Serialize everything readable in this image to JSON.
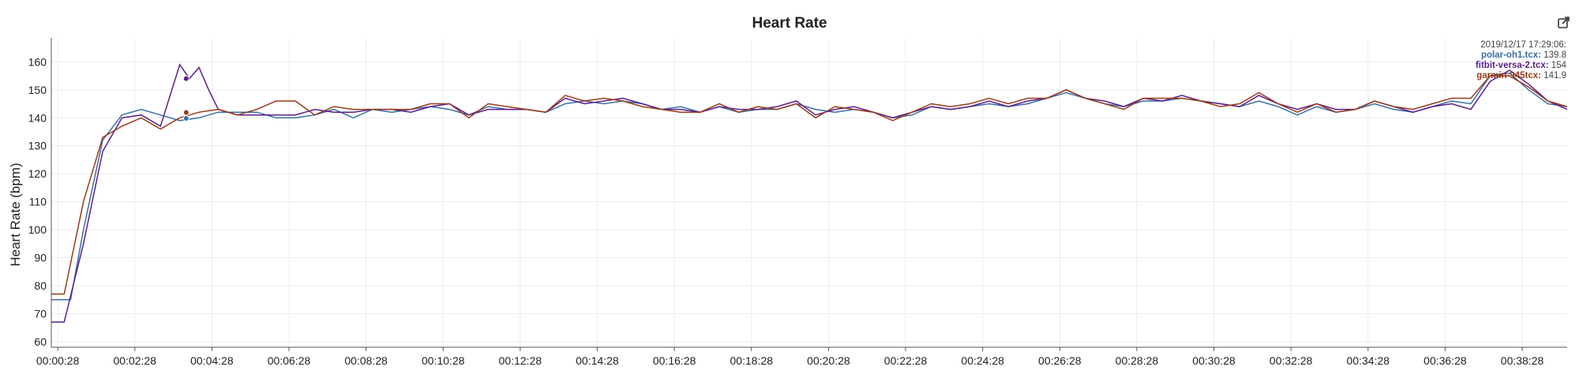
{
  "chart_data": {
    "type": "line",
    "title": "Heart Rate",
    "ylabel": "Heart Rate (bpm)",
    "xlabel": "",
    "ylim": [
      58,
      168
    ],
    "xlim": [
      "00:00:18",
      "00:39:38"
    ],
    "yticks": [
      60,
      70,
      80,
      90,
      100,
      110,
      120,
      130,
      140,
      150,
      160
    ],
    "xticks": [
      "00:00:28",
      "00:02:28",
      "00:04:28",
      "00:06:28",
      "00:08:28",
      "00:10:28",
      "00:12:28",
      "00:14:28",
      "00:16:28",
      "00:18:28",
      "00:20:28",
      "00:22:28",
      "00:24:28",
      "00:26:28",
      "00:28:28",
      "00:30:28",
      "00:32:28",
      "00:34:28",
      "00:36:28",
      "00:38:28"
    ],
    "grid": true,
    "legend_position": "top-right",
    "tooltip": {
      "timestamp": "2019/12/17 17:29:06:",
      "time": "00:03:48",
      "entries": [
        {
          "name": "polar-oh1.tcx:",
          "value": "139.8",
          "color": "#3b6fa6"
        },
        {
          "name": "fitbit-versa-2.tcx:",
          "value": "154",
          "color": "#5b1e8c"
        },
        {
          "name": "garmin-945tcx:",
          "value": "141.9",
          "color": "#9a3b1a"
        }
      ]
    },
    "series": [
      {
        "name": "polar-oh1.tcx",
        "color": "#3b6fa6",
        "points": [
          [
            "00:00:18",
            75
          ],
          [
            "00:00:48",
            75
          ],
          [
            "00:01:08",
            100
          ],
          [
            "00:01:38",
            132
          ],
          [
            "00:02:08",
            141
          ],
          [
            "00:02:38",
            143
          ],
          [
            "00:03:08",
            141
          ],
          [
            "00:03:38",
            139
          ],
          [
            "00:04:08",
            140
          ],
          [
            "00:04:38",
            142
          ],
          [
            "00:05:08",
            142
          ],
          [
            "00:05:38",
            142
          ],
          [
            "00:06:08",
            140
          ],
          [
            "00:06:38",
            140
          ],
          [
            "00:07:08",
            141
          ],
          [
            "00:07:38",
            143
          ],
          [
            "00:08:08",
            140
          ],
          [
            "00:08:38",
            143
          ],
          [
            "00:09:08",
            142
          ],
          [
            "00:09:38",
            143
          ],
          [
            "00:10:08",
            144
          ],
          [
            "00:10:38",
            143
          ],
          [
            "00:11:08",
            141
          ],
          [
            "00:11:38",
            144
          ],
          [
            "00:12:08",
            143
          ],
          [
            "00:12:38",
            143
          ],
          [
            "00:13:08",
            142
          ],
          [
            "00:13:38",
            145
          ],
          [
            "00:14:08",
            146
          ],
          [
            "00:14:38",
            145
          ],
          [
            "00:15:08",
            146
          ],
          [
            "00:15:38",
            145
          ],
          [
            "00:16:08",
            143
          ],
          [
            "00:16:38",
            144
          ],
          [
            "00:17:08",
            142
          ],
          [
            "00:17:38",
            144
          ],
          [
            "00:18:08",
            142
          ],
          [
            "00:18:38",
            143
          ],
          [
            "00:19:08",
            143
          ],
          [
            "00:19:38",
            145
          ],
          [
            "00:20:08",
            143
          ],
          [
            "00:20:38",
            142
          ],
          [
            "00:21:08",
            143
          ],
          [
            "00:21:38",
            142
          ],
          [
            "00:22:08",
            140
          ],
          [
            "00:22:38",
            141
          ],
          [
            "00:23:08",
            144
          ],
          [
            "00:23:38",
            143
          ],
          [
            "00:24:08",
            144
          ],
          [
            "00:24:38",
            145
          ],
          [
            "00:25:08",
            144
          ],
          [
            "00:25:38",
            145
          ],
          [
            "00:26:08",
            147
          ],
          [
            "00:26:38",
            149
          ],
          [
            "00:27:08",
            147
          ],
          [
            "00:27:38",
            145
          ],
          [
            "00:28:08",
            144
          ],
          [
            "00:28:38",
            146
          ],
          [
            "00:29:08",
            146
          ],
          [
            "00:29:38",
            147
          ],
          [
            "00:30:08",
            146
          ],
          [
            "00:30:38",
            145
          ],
          [
            "00:31:08",
            144
          ],
          [
            "00:31:38",
            146
          ],
          [
            "00:32:08",
            144
          ],
          [
            "00:32:38",
            141
          ],
          [
            "00:33:08",
            144
          ],
          [
            "00:33:38",
            142
          ],
          [
            "00:34:08",
            143
          ],
          [
            "00:34:38",
            145
          ],
          [
            "00:35:08",
            143
          ],
          [
            "00:35:38",
            142
          ],
          [
            "00:36:08",
            144
          ],
          [
            "00:36:38",
            146
          ],
          [
            "00:37:08",
            145
          ],
          [
            "00:37:38",
            155
          ],
          [
            "00:38:08",
            156
          ],
          [
            "00:38:38",
            150
          ],
          [
            "00:39:08",
            145
          ],
          [
            "00:39:38",
            144
          ]
        ]
      },
      {
        "name": "fitbit-versa-2.tcx",
        "color": "#5b1e8c",
        "points": [
          [
            "00:00:18",
            67
          ],
          [
            "00:00:38",
            67
          ],
          [
            "00:01:08",
            95
          ],
          [
            "00:01:38",
            128
          ],
          [
            "00:02:08",
            140
          ],
          [
            "00:02:38",
            141
          ],
          [
            "00:03:08",
            137
          ],
          [
            "00:03:23",
            148
          ],
          [
            "00:03:38",
            159
          ],
          [
            "00:03:53",
            154
          ],
          [
            "00:04:08",
            158
          ],
          [
            "00:04:23",
            150
          ],
          [
            "00:04:38",
            143
          ],
          [
            "00:05:08",
            141
          ],
          [
            "00:05:38",
            141
          ],
          [
            "00:06:08",
            141
          ],
          [
            "00:06:38",
            141
          ],
          [
            "00:07:08",
            143
          ],
          [
            "00:07:38",
            142
          ],
          [
            "00:08:08",
            142
          ],
          [
            "00:08:38",
            143
          ],
          [
            "00:09:08",
            143
          ],
          [
            "00:09:38",
            142
          ],
          [
            "00:10:08",
            144
          ],
          [
            "00:10:38",
            145
          ],
          [
            "00:11:08",
            141
          ],
          [
            "00:11:38",
            143
          ],
          [
            "00:12:08",
            143
          ],
          [
            "00:12:38",
            143
          ],
          [
            "00:13:08",
            142
          ],
          [
            "00:13:38",
            147
          ],
          [
            "00:14:08",
            145
          ],
          [
            "00:14:38",
            146
          ],
          [
            "00:15:08",
            147
          ],
          [
            "00:15:38",
            145
          ],
          [
            "00:16:08",
            143
          ],
          [
            "00:16:38",
            143
          ],
          [
            "00:17:08",
            142
          ],
          [
            "00:17:38",
            144
          ],
          [
            "00:18:08",
            143
          ],
          [
            "00:18:38",
            143
          ],
          [
            "00:19:08",
            144
          ],
          [
            "00:19:38",
            146
          ],
          [
            "00:20:08",
            141
          ],
          [
            "00:20:38",
            143
          ],
          [
            "00:21:08",
            144
          ],
          [
            "00:21:38",
            142
          ],
          [
            "00:22:08",
            140
          ],
          [
            "00:22:38",
            142
          ],
          [
            "00:23:08",
            144
          ],
          [
            "00:23:38",
            143
          ],
          [
            "00:24:08",
            144
          ],
          [
            "00:24:38",
            146
          ],
          [
            "00:25:08",
            144
          ],
          [
            "00:25:38",
            146
          ],
          [
            "00:26:08",
            147
          ],
          [
            "00:26:38",
            150
          ],
          [
            "00:27:08",
            147
          ],
          [
            "00:27:38",
            146
          ],
          [
            "00:28:08",
            144
          ],
          [
            "00:28:38",
            147
          ],
          [
            "00:29:08",
            146
          ],
          [
            "00:29:38",
            148
          ],
          [
            "00:30:08",
            146
          ],
          [
            "00:30:38",
            145
          ],
          [
            "00:31:08",
            144
          ],
          [
            "00:31:38",
            148
          ],
          [
            "00:32:08",
            145
          ],
          [
            "00:32:38",
            143
          ],
          [
            "00:33:08",
            145
          ],
          [
            "00:33:38",
            143
          ],
          [
            "00:34:08",
            143
          ],
          [
            "00:34:38",
            146
          ],
          [
            "00:35:08",
            144
          ],
          [
            "00:35:38",
            142
          ],
          [
            "00:36:08",
            144
          ],
          [
            "00:36:38",
            145
          ],
          [
            "00:37:08",
            143
          ],
          [
            "00:37:38",
            153
          ],
          [
            "00:38:08",
            157
          ],
          [
            "00:38:38",
            152
          ],
          [
            "00:39:08",
            146
          ],
          [
            "00:39:38",
            143
          ]
        ]
      },
      {
        "name": "garmin-945tcx",
        "color": "#9a3b1a",
        "points": [
          [
            "00:00:18",
            77
          ],
          [
            "00:00:38",
            77
          ],
          [
            "00:01:08",
            110
          ],
          [
            "00:01:38",
            133
          ],
          [
            "00:02:08",
            137
          ],
          [
            "00:02:38",
            140
          ],
          [
            "00:03:08",
            136
          ],
          [
            "00:03:38",
            140
          ],
          [
            "00:04:08",
            142
          ],
          [
            "00:04:38",
            143
          ],
          [
            "00:05:08",
            141
          ],
          [
            "00:05:38",
            143
          ],
          [
            "00:06:08",
            146
          ],
          [
            "00:06:38",
            146
          ],
          [
            "00:07:08",
            141
          ],
          [
            "00:07:38",
            144
          ],
          [
            "00:08:08",
            143
          ],
          [
            "00:08:38",
            143
          ],
          [
            "00:09:08",
            143
          ],
          [
            "00:09:38",
            143
          ],
          [
            "00:10:08",
            145
          ],
          [
            "00:10:38",
            145
          ],
          [
            "00:11:08",
            140
          ],
          [
            "00:11:38",
            145
          ],
          [
            "00:12:08",
            144
          ],
          [
            "00:12:38",
            143
          ],
          [
            "00:13:08",
            142
          ],
          [
            "00:13:38",
            148
          ],
          [
            "00:14:08",
            146
          ],
          [
            "00:14:38",
            147
          ],
          [
            "00:15:08",
            146
          ],
          [
            "00:15:38",
            144
          ],
          [
            "00:16:08",
            143
          ],
          [
            "00:16:38",
            142
          ],
          [
            "00:17:08",
            142
          ],
          [
            "00:17:38",
            145
          ],
          [
            "00:18:08",
            142
          ],
          [
            "00:18:38",
            144
          ],
          [
            "00:19:08",
            143
          ],
          [
            "00:19:38",
            145
          ],
          [
            "00:20:08",
            140
          ],
          [
            "00:20:38",
            144
          ],
          [
            "00:21:08",
            143
          ],
          [
            "00:21:38",
            142
          ],
          [
            "00:22:08",
            139
          ],
          [
            "00:22:38",
            142
          ],
          [
            "00:23:08",
            145
          ],
          [
            "00:23:38",
            144
          ],
          [
            "00:24:08",
            145
          ],
          [
            "00:24:38",
            147
          ],
          [
            "00:25:08",
            145
          ],
          [
            "00:25:38",
            147
          ],
          [
            "00:26:08",
            147
          ],
          [
            "00:26:38",
            150
          ],
          [
            "00:27:08",
            147
          ],
          [
            "00:27:38",
            145
          ],
          [
            "00:28:08",
            143
          ],
          [
            "00:28:38",
            147
          ],
          [
            "00:29:08",
            147
          ],
          [
            "00:29:38",
            147
          ],
          [
            "00:30:08",
            146
          ],
          [
            "00:30:38",
            144
          ],
          [
            "00:31:08",
            145
          ],
          [
            "00:31:38",
            149
          ],
          [
            "00:32:08",
            145
          ],
          [
            "00:32:38",
            142
          ],
          [
            "00:33:08",
            145
          ],
          [
            "00:33:38",
            142
          ],
          [
            "00:34:08",
            143
          ],
          [
            "00:34:38",
            146
          ],
          [
            "00:35:08",
            144
          ],
          [
            "00:35:38",
            143
          ],
          [
            "00:36:08",
            145
          ],
          [
            "00:36:38",
            147
          ],
          [
            "00:37:08",
            147
          ],
          [
            "00:37:38",
            155
          ],
          [
            "00:38:08",
            155
          ],
          [
            "00:38:38",
            151
          ],
          [
            "00:39:08",
            146
          ],
          [
            "00:39:38",
            144
          ]
        ]
      }
    ]
  }
}
